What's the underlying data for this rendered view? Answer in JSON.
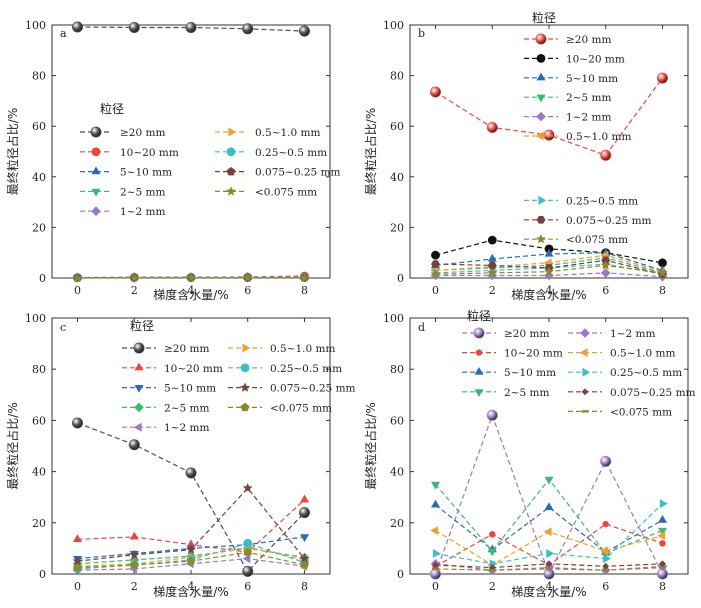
{
  "colors": {
    "s20": "#4d4d4d",
    "s10": "#e8483a",
    "s5": "#2a6cb3",
    "s2": "#3cb872",
    "s1": "#9a78c8",
    "s05": "#f0a030",
    "s025": "#38c0c8",
    "s0075": "#7a3f3f",
    "slt": "#8a8a2a",
    "s10b": "#111111"
  },
  "chart_data": [
    {
      "panel": "a",
      "type": "line",
      "xlabel": "梯度含水量/%",
      "ylabel": "最终粒径占比/%",
      "x": [
        0,
        2,
        4,
        6,
        8
      ],
      "xlim": [
        -0.9,
        8.9
      ],
      "ylim": [
        0,
        100
      ],
      "yticks": [
        0,
        20,
        40,
        60,
        80,
        100
      ],
      "legend_title": "粒径",
      "legend_columns": 2,
      "series": [
        {
          "name": "≥20 mm",
          "color": "s20",
          "marker": "sphere",
          "values": [
            99.2,
            99.0,
            99.0,
            98.5,
            97.6
          ]
        },
        {
          "name": "10~20 mm",
          "color": "s10",
          "marker": "circle",
          "values": [
            0.2,
            0.3,
            0.3,
            0.4,
            0.8
          ]
        },
        {
          "name": "5~10 mm",
          "color": "s5",
          "marker": "triangle-up",
          "values": [
            0.1,
            0.2,
            0.2,
            0.3,
            0.4
          ]
        },
        {
          "name": "2~5 mm",
          "color": "s2",
          "marker": "triangle-down",
          "values": [
            0.1,
            0.1,
            0.2,
            0.2,
            0.3
          ]
        },
        {
          "name": "1~2 mm",
          "color": "s1",
          "marker": "diamond",
          "values": [
            0.1,
            0.1,
            0.1,
            0.2,
            0.2
          ]
        },
        {
          "name": "0.5~1.0 mm",
          "color": "s05",
          "marker": "triangle-right",
          "values": [
            0.1,
            0.1,
            0.1,
            0.1,
            0.2
          ]
        },
        {
          "name": "0.25~0.5 mm",
          "color": "s025",
          "marker": "circle",
          "values": [
            0.1,
            0.1,
            0.1,
            0.1,
            0.1
          ]
        },
        {
          "name": "0.075~0.25 mm",
          "color": "s0075",
          "marker": "pentagon",
          "values": [
            0.1,
            0.1,
            0.1,
            0.1,
            0.1
          ]
        },
        {
          "name": "<0.075 mm",
          "color": "slt",
          "marker": "star",
          "values": [
            0.0,
            0.1,
            0.1,
            0.1,
            0.1
          ]
        }
      ]
    },
    {
      "panel": "b",
      "type": "line",
      "xlabel": "梯度含水量/%",
      "ylabel": "最终粒径占比/%",
      "x": [
        0,
        2,
        4,
        6,
        8
      ],
      "xlim": [
        -0.9,
        8.9
      ],
      "ylim": [
        0,
        100
      ],
      "yticks": [
        0,
        20,
        40,
        60,
        80,
        100
      ],
      "legend_title": "粒径",
      "legend_columns": 1,
      "series": [
        {
          "name": "≥20 mm",
          "color": "s10",
          "marker": "sphere",
          "values": [
            73.5,
            59.5,
            56.5,
            48.5,
            79.0
          ]
        },
        {
          "name": "10~20 mm",
          "color": "s10b",
          "marker": "circle",
          "values": [
            9.0,
            15.0,
            11.5,
            10.0,
            6.0
          ]
        },
        {
          "name": "5~10 mm",
          "color": "s5",
          "marker": "triangle-up",
          "values": [
            5.0,
            7.5,
            9.5,
            10.0,
            3.0
          ]
        },
        {
          "name": "2~5 mm",
          "color": "s2",
          "marker": "triangle-down",
          "values": [
            3.0,
            4.0,
            5.0,
            8.0,
            2.0
          ]
        },
        {
          "name": "1~2 mm",
          "color": "s1",
          "marker": "diamond",
          "values": [
            1.0,
            1.0,
            1.0,
            2.0,
            0.5
          ]
        },
        {
          "name": "0.5~1.0 mm",
          "color": "s05",
          "marker": "triangle-left",
          "values": [
            3.0,
            4.5,
            6.0,
            9.0,
            2.5
          ]
        },
        {
          "name": "0.25~0.5 mm",
          "color": "s025",
          "marker": "triangle-right",
          "values": [
            2.0,
            3.0,
            4.0,
            5.5,
            1.5
          ]
        },
        {
          "name": "0.075~0.25 mm",
          "color": "s0075",
          "marker": "hexagon",
          "values": [
            5.5,
            5.0,
            4.0,
            7.0,
            1.5
          ]
        },
        {
          "name": "<0.075 mm",
          "color": "slt",
          "marker": "star",
          "values": [
            1.5,
            2.0,
            2.5,
            5.0,
            2.0
          ]
        }
      ]
    },
    {
      "panel": "c",
      "type": "line",
      "xlabel": "梯度含水量/%",
      "ylabel": "最终粒径占比/%",
      "x": [
        0,
        2,
        4,
        6,
        8
      ],
      "xlim": [
        -0.9,
        8.9
      ],
      "ylim": [
        0,
        100
      ],
      "yticks": [
        0,
        20,
        40,
        60,
        80,
        100
      ],
      "legend_title": "粒径",
      "legend_columns": 2,
      "series": [
        {
          "name": "≥20 mm",
          "color": "s20",
          "marker": "sphere",
          "values": [
            59.0,
            50.5,
            39.5,
            1.0,
            24.0
          ]
        },
        {
          "name": "10~20 mm",
          "color": "s10",
          "marker": "triangle-up",
          "values": [
            13.5,
            14.5,
            11.5,
            8.5,
            29.0
          ]
        },
        {
          "name": "5~10 mm",
          "color": "s5",
          "marker": "triangle-down",
          "values": [
            6.0,
            8.0,
            10.0,
            11.5,
            14.5
          ]
        },
        {
          "name": "2~5 mm",
          "color": "s2",
          "marker": "diamond",
          "values": [
            4.0,
            5.5,
            7.0,
            10.0,
            6.5
          ]
        },
        {
          "name": "1~2 mm",
          "color": "s1",
          "marker": "triangle-left",
          "values": [
            1.5,
            2.0,
            4.0,
            6.0,
            3.0
          ]
        },
        {
          "name": "0.5~1.0 mm",
          "color": "s05",
          "marker": "triangle-right",
          "values": [
            3.0,
            4.0,
            6.5,
            10.5,
            5.5
          ]
        },
        {
          "name": "0.25~0.5 mm",
          "color": "s025",
          "marker": "circle",
          "values": [
            2.0,
            3.5,
            5.5,
            12.0,
            4.5
          ]
        },
        {
          "name": "0.075~0.25 mm",
          "color": "s0075",
          "marker": "star",
          "values": [
            5.0,
            7.5,
            9.5,
            33.5,
            6.0
          ]
        },
        {
          "name": "<0.075 mm",
          "color": "slt",
          "marker": "pentagon",
          "values": [
            2.5,
            3.5,
            5.0,
            8.5,
            3.5
          ]
        }
      ]
    },
    {
      "panel": "d",
      "type": "line",
      "xlabel": "梯度含水量/%",
      "ylabel": "最终粒径占比/%",
      "x": [
        0,
        2,
        4,
        6,
        8
      ],
      "xlim": [
        -0.9,
        8.9
      ],
      "ylim": [
        0,
        100
      ],
      "yticks": [
        0,
        20,
        40,
        60,
        80,
        100
      ],
      "legend_title": "粒径",
      "legend_columns": 2,
      "series": [
        {
          "name": "≥20 mm",
          "color": "s1",
          "marker": "sphere",
          "values": [
            0.0,
            62.0,
            0.0,
            44.0,
            0.0
          ]
        },
        {
          "name": "10~20 mm",
          "color": "s10",
          "marker": "small-circle",
          "values": [
            3.0,
            15.5,
            3.5,
            19.5,
            12.0
          ]
        },
        {
          "name": "5~10 mm",
          "color": "s5",
          "marker": "triangle-up",
          "values": [
            27.0,
            9.5,
            26.0,
            8.5,
            21.0
          ]
        },
        {
          "name": "2~5 mm",
          "color": "s2",
          "marker": "triangle-down",
          "values": [
            35.0,
            9.0,
            37.0,
            8.0,
            17.0
          ]
        },
        {
          "name": "1~2 mm",
          "color": "s1",
          "marker": "diamond",
          "values": [
            4.0,
            1.5,
            2.5,
            1.5,
            3.0
          ]
        },
        {
          "name": "0.5~1.0 mm",
          "color": "s05",
          "marker": "triangle-left",
          "values": [
            17.0,
            3.5,
            16.5,
            9.0,
            15.0
          ]
        },
        {
          "name": "0.25~0.5 mm",
          "color": "s025",
          "marker": "triangle-right",
          "values": [
            8.0,
            4.0,
            8.0,
            6.0,
            27.5
          ]
        },
        {
          "name": "0.075~0.25 mm",
          "color": "s0075",
          "marker": "small-diamond",
          "values": [
            3.5,
            2.5,
            4.0,
            3.0,
            4.0
          ]
        },
        {
          "name": "<0.075 mm",
          "color": "slt",
          "marker": "dash",
          "values": [
            2.0,
            1.5,
            2.0,
            1.5,
            2.5
          ]
        }
      ]
    }
  ]
}
